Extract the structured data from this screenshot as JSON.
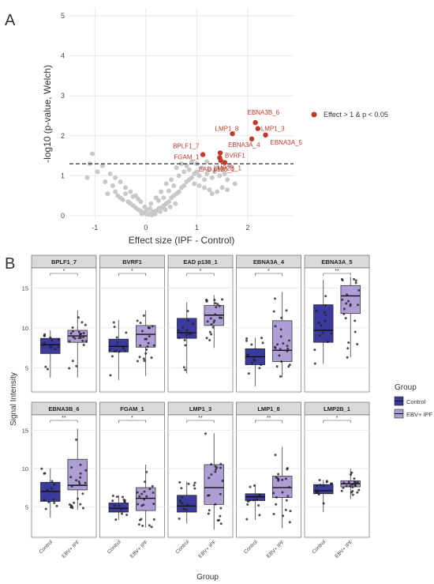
{
  "panel_a_letter": "A",
  "panel_b_letter": "B",
  "colors": {
    "grey_point": "#c8c8c8",
    "red_point": "#c0392b",
    "control_fill": "#3b3b9e",
    "ipf_fill": "#ad9fd6",
    "strip_fill": "#d9d9d9",
    "grid": "#e6e6e6"
  },
  "chart_data": [
    {
      "type": "scatter",
      "name": "volcano",
      "xlabel": "Effect size (IPF - Control)",
      "ylabel": "-log10 (p-value, Welch)",
      "xlim": [
        -1.5,
        2.9
      ],
      "ylim": [
        -0.1,
        5.2
      ],
      "xticks": [
        -1,
        0,
        1,
        2
      ],
      "yticks": [
        0,
        1,
        2,
        3,
        4,
        5
      ],
      "threshold_y": 1.3,
      "legend_label": "Effect > 1 & p < 0.05",
      "highlighted": [
        {
          "label": "EBNA3B_6",
          "x": 2.15,
          "y": 2.33
        },
        {
          "label": "LMP1_3",
          "x": 2.2,
          "y": 2.18
        },
        {
          "label": "LMP1_8",
          "x": 1.7,
          "y": 2.05
        },
        {
          "label": "EBNA3A_5",
          "x": 2.35,
          "y": 2.02
        },
        {
          "label": "EBNA3A_4",
          "x": 2.08,
          "y": 1.92
        },
        {
          "label": "BPLF1_7",
          "x": 1.12,
          "y": 1.53
        },
        {
          "label": "BVRF1",
          "x": 1.46,
          "y": 1.57
        },
        {
          "label": "FGAM_1",
          "x": 1.45,
          "y": 1.45
        },
        {
          "label": "EAD p138_1",
          "x": 1.47,
          "y": 1.38
        },
        {
          "label": "LMP2B_1",
          "x": 1.55,
          "y": 1.33
        }
      ],
      "background_points": [
        [
          -1.05,
          1.55
        ],
        [
          -1.1,
          1.3
        ],
        [
          -0.95,
          1.1
        ],
        [
          -0.85,
          1.25
        ],
        [
          -1.15,
          0.95
        ],
        [
          -0.8,
          0.85
        ],
        [
          -0.7,
          1.05
        ],
        [
          -0.65,
          0.75
        ],
        [
          -0.6,
          0.6
        ],
        [
          -0.75,
          0.55
        ],
        [
          -0.55,
          0.5
        ],
        [
          -0.5,
          0.45
        ],
        [
          -0.45,
          0.4
        ],
        [
          -0.4,
          0.55
        ],
        [
          -0.35,
          0.35
        ],
        [
          -0.3,
          0.3
        ],
        [
          -0.25,
          0.25
        ],
        [
          -0.2,
          0.2
        ],
        [
          -0.15,
          0.15
        ],
        [
          -0.1,
          0.12
        ],
        [
          -0.05,
          0.08
        ],
        [
          0.0,
          0.05
        ],
        [
          0.05,
          0.03
        ],
        [
          0.1,
          0.06
        ],
        [
          0.15,
          0.1
        ],
        [
          0.2,
          0.12
        ],
        [
          0.25,
          0.18
        ],
        [
          0.3,
          0.2
        ],
        [
          0.35,
          0.25
        ],
        [
          0.4,
          0.3
        ],
        [
          0.45,
          0.35
        ],
        [
          0.5,
          0.45
        ],
        [
          0.55,
          0.5
        ],
        [
          0.6,
          0.55
        ],
        [
          0.65,
          0.6
        ],
        [
          0.7,
          0.7
        ],
        [
          0.75,
          0.75
        ],
        [
          0.8,
          0.85
        ],
        [
          0.85,
          0.9
        ],
        [
          0.9,
          0.95
        ],
        [
          0.95,
          1.05
        ],
        [
          1.0,
          1.1
        ],
        [
          1.05,
          1.0
        ],
        [
          1.1,
          1.2
        ],
        [
          1.15,
          0.9
        ],
        [
          1.2,
          1.05
        ],
        [
          1.25,
          1.15
        ],
        [
          1.3,
          0.95
        ],
        [
          1.35,
          1.1
        ],
        [
          1.4,
          1.2
        ],
        [
          1.45,
          1.0
        ],
        [
          1.5,
          1.15
        ],
        [
          1.55,
          1.05
        ],
        [
          1.6,
          0.9
        ],
        [
          1.65,
          1.25
        ],
        [
          0.6,
          1.2
        ],
        [
          0.7,
          1.3
        ],
        [
          0.8,
          1.25
        ],
        [
          0.9,
          1.35
        ],
        [
          1.0,
          1.3
        ],
        [
          1.2,
          1.35
        ],
        [
          0.4,
          0.8
        ],
        [
          0.5,
          0.9
        ],
        [
          0.55,
          0.75
        ],
        [
          0.3,
          0.6
        ],
        [
          0.2,
          0.45
        ],
        [
          0.1,
          0.3
        ],
        [
          -0.1,
          0.35
        ],
        [
          -0.2,
          0.5
        ],
        [
          -0.3,
          0.6
        ],
        [
          -0.4,
          0.7
        ],
        [
          -0.5,
          0.85
        ],
        [
          -0.6,
          0.95
        ],
        [
          0.65,
          1.0
        ],
        [
          0.75,
          1.1
        ],
        [
          0.85,
          1.15
        ],
        [
          0.95,
          0.8
        ],
        [
          1.05,
          0.75
        ],
        [
          1.15,
          0.7
        ],
        [
          1.25,
          0.65
        ],
        [
          0.02,
          0.15
        ],
        [
          -0.02,
          0.22
        ],
        [
          0.12,
          0.02
        ],
        [
          0.18,
          0.04
        ],
        [
          0.08,
          0.18
        ],
        [
          -0.08,
          0.05
        ],
        [
          0.28,
          0.1
        ],
        [
          0.38,
          0.15
        ],
        [
          0.48,
          0.22
        ],
        [
          0.58,
          0.3
        ],
        [
          1.3,
          0.55
        ],
        [
          1.4,
          0.6
        ],
        [
          1.5,
          0.7
        ],
        [
          1.6,
          0.65
        ],
        [
          1.75,
          0.8
        ],
        [
          0.45,
          0.62
        ],
        [
          0.35,
          0.45
        ],
        [
          0.25,
          0.38
        ],
        [
          -0.15,
          0.42
        ],
        [
          -0.25,
          0.48
        ]
      ]
    },
    {
      "type": "box",
      "name": "signal-intensity-panels",
      "ylabel": "Signal Intensity",
      "xlabel": "Group",
      "categories": [
        "Control",
        "EBV+ IPF"
      ],
      "legend_title": "Group",
      "legend_entries": [
        "Control",
        "EBV+ IPF"
      ],
      "row_yticks": [
        [
          5,
          10,
          15
        ],
        [
          5,
          10,
          15
        ]
      ],
      "row_ylim": [
        [
          2,
          17.5
        ],
        [
          1,
          17
        ]
      ],
      "panels": [
        {
          "title": "BPLF1_7",
          "sig": "*",
          "row": 0,
          "boxes": [
            {
              "q1": 6.8,
              "median": 7.9,
              "q3": 8.7,
              "lo": 3.8,
              "hi": 9.7
            },
            {
              "q1": 8.2,
              "median": 9.0,
              "q3": 9.7,
              "lo": 3.8,
              "hi": 12.2
            }
          ]
        },
        {
          "title": "BVRF1",
          "sig": "*",
          "row": 0,
          "boxes": [
            {
              "q1": 7.0,
              "median": 7.7,
              "q3": 8.6,
              "lo": 3.5,
              "hi": 11.0
            },
            {
              "q1": 7.6,
              "median": 9.2,
              "q3": 10.3,
              "lo": 4.0,
              "hi": 12.2
            }
          ]
        },
        {
          "title": "EAD p138_1",
          "sig": "*",
          "row": 0,
          "boxes": [
            {
              "q1": 8.7,
              "median": 9.4,
              "q3": 11.2,
              "lo": 4.3,
              "hi": 13.2
            },
            {
              "q1": 10.3,
              "median": 11.6,
              "q3": 12.8,
              "lo": 7.5,
              "hi": 14.1
            }
          ]
        },
        {
          "title": "EBNA3A_4",
          "sig": "*",
          "row": 0,
          "boxes": [
            {
              "q1": 5.4,
              "median": 6.4,
              "q3": 7.4,
              "lo": 2.7,
              "hi": 8.8
            },
            {
              "q1": 5.8,
              "median": 7.2,
              "q3": 10.9,
              "lo": 3.8,
              "hi": 14.5
            }
          ]
        },
        {
          "title": "EBNA3A_5",
          "sig": "**",
          "row": 0,
          "boxes": [
            {
              "q1": 8.2,
              "median": 9.7,
              "q3": 12.9,
              "lo": 5.5,
              "hi": 16.0
            },
            {
              "q1": 11.8,
              "median": 14.0,
              "q3": 15.3,
              "lo": 6.3,
              "hi": 16.4
            }
          ]
        },
        {
          "title": "EBNA3B_6",
          "sig": "**",
          "row": 1,
          "boxes": [
            {
              "q1": 5.7,
              "median": 7.0,
              "q3": 8.2,
              "lo": 3.6,
              "hi": 10.0
            },
            {
              "q1": 7.2,
              "median": 7.8,
              "q3": 11.2,
              "lo": 4.6,
              "hi": 15.2
            }
          ]
        },
        {
          "title": "FGAM_1",
          "sig": "*",
          "row": 1,
          "boxes": [
            {
              "q1": 4.3,
              "median": 4.8,
              "q3": 5.5,
              "lo": 3.3,
              "hi": 6.5
            },
            {
              "q1": 4.5,
              "median": 6.1,
              "q3": 7.5,
              "lo": 2.3,
              "hi": 10.5
            }
          ]
        },
        {
          "title": "LMP1_3",
          "sig": "**",
          "row": 1,
          "boxes": [
            {
              "q1": 4.3,
              "median": 5.1,
              "q3": 6.5,
              "lo": 2.8,
              "hi": 8.3
            },
            {
              "q1": 5.3,
              "median": 7.5,
              "q3": 10.5,
              "lo": 2.0,
              "hi": 14.6
            }
          ]
        },
        {
          "title": "LMP1_8",
          "sig": "**",
          "row": 1,
          "boxes": [
            {
              "q1": 5.8,
              "median": 6.3,
              "q3": 6.7,
              "lo": 3.3,
              "hi": 7.9
            },
            {
              "q1": 6.2,
              "median": 7.5,
              "q3": 9.0,
              "lo": 2.2,
              "hi": 12.8
            }
          ]
        },
        {
          "title": "LMP2B_1",
          "sig": "*",
          "row": 1,
          "boxes": [
            {
              "q1": 6.7,
              "median": 7.1,
              "q3": 7.9,
              "lo": 4.3,
              "hi": 8.5
            },
            {
              "q1": 7.6,
              "median": 8.0,
              "q3": 8.4,
              "lo": 6.0,
              "hi": 10.0
            }
          ]
        }
      ]
    }
  ]
}
